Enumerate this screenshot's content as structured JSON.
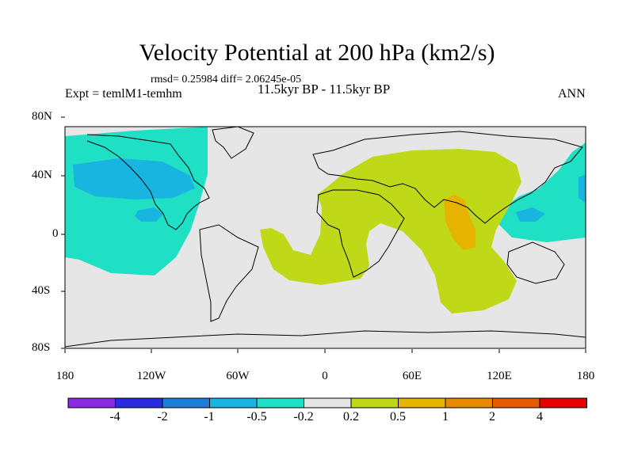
{
  "title": "Velocity Potential at 200 hPa (km2/s)",
  "stats": "rmsd= 0.25984  diff= 2.06245e-05",
  "expt": "Expt = temlM1-temhm",
  "subtitle": "11.5kyr BP - 11.5kyr BP",
  "season": "ANN",
  "y_axis_labels": [
    "80N",
    "40N",
    "0",
    "40S",
    "80S"
  ],
  "x_axis_labels": [
    "180",
    "120W",
    "60W",
    "0",
    "60E",
    "120E",
    "180"
  ],
  "colorbar": {
    "labels": [
      "-4",
      "-2",
      "-1",
      "-0.5",
      "-0.2",
      "0.2",
      "0.5",
      "1",
      "2",
      "4"
    ],
    "colors": [
      "#8a2be2",
      "#2a2ae0",
      "#1d7fd9",
      "#17b5e0",
      "#1fe0c4",
      "#e6e6e6",
      "#bfd919",
      "#e6b400",
      "#e68a00",
      "#e65a00",
      "#e60000"
    ]
  },
  "map_colors": {
    "background": "#e6e6e6",
    "neg_weak": "#1fe0c4",
    "neg_mid": "#17b5e0",
    "pos_weak": "#bfd919",
    "pos_mid": "#e6b400"
  }
}
